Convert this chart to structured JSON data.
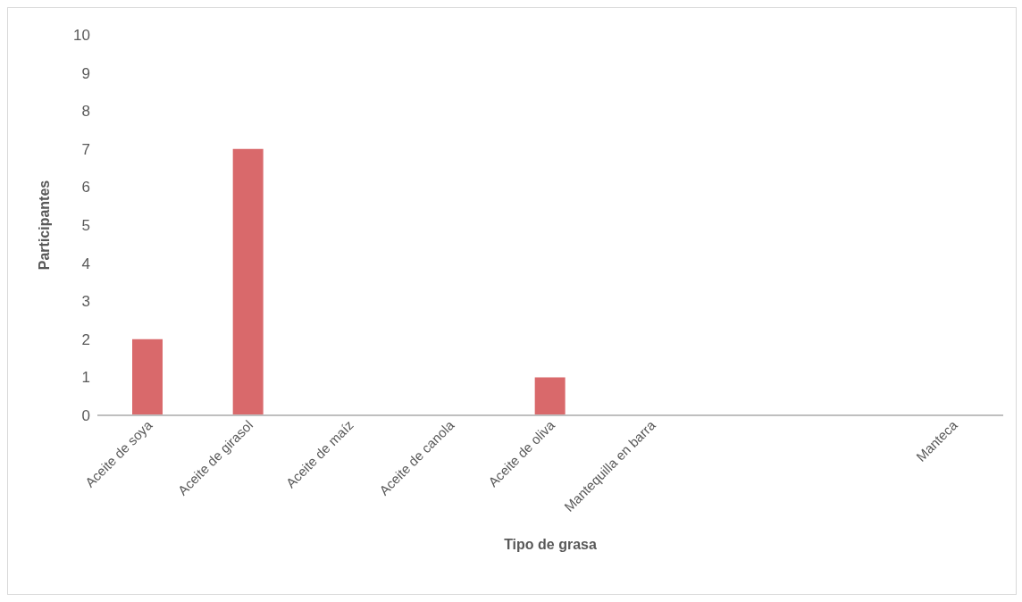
{
  "chart_data": {
    "type": "bar",
    "xlabel": "Tipo de grasa",
    "ylabel": "Participantes",
    "categories": [
      "Aceite de soya",
      "Aceite de girasol",
      "Aceite de maíz",
      "Aceite de canola",
      "Aceite de oliva",
      "Mantequilla en barra",
      null,
      null,
      "Manteca"
    ],
    "values": [
      2,
      7,
      0,
      0,
      1,
      0,
      0,
      0,
      0
    ],
    "color": "#d9696b",
    "ylim": [
      0,
      10
    ],
    "yticks": [
      0,
      1,
      2,
      3,
      4,
      5,
      6,
      7,
      8,
      9,
      10
    ],
    "grid": false,
    "legend": false
  }
}
